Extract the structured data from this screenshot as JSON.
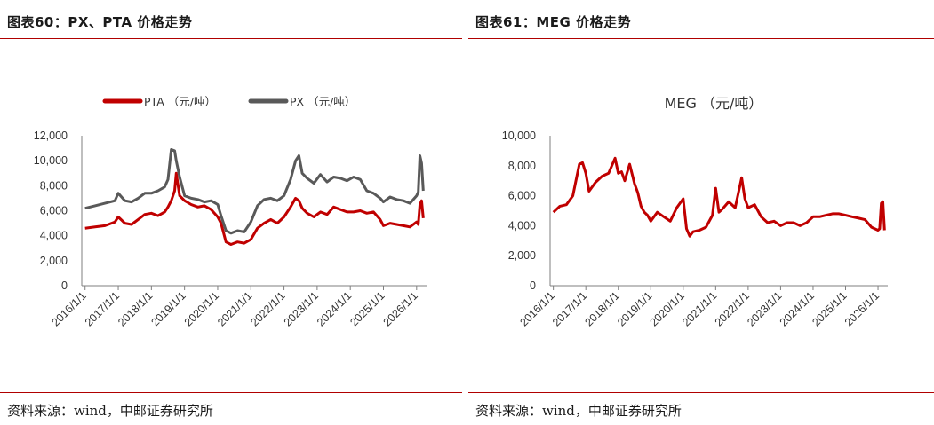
{
  "left_panel": {
    "figure_title": "图表60：PX、PTA 价格走势",
    "source": "资料来源：wind，中邮证券研究所"
  },
  "right_panel": {
    "figure_title": "图表61：MEG 价格走势",
    "source": "资料来源：wind，中邮证券研究所"
  },
  "colors": {
    "red": "#c00000",
    "gray": "#595959",
    "rule": "#b00000"
  },
  "chart_data": [
    {
      "type": "line",
      "title": "",
      "x_ticks": [
        "2016/1/1",
        "2017/1/1",
        "2018/1/1",
        "2019/1/1",
        "2020/1/1",
        "2021/1/1",
        "2022/1/1",
        "2023/1/1",
        "2024/1/1",
        "2025/1/1",
        "2026/1/1"
      ],
      "y_ticks": [
        "0",
        "2,000",
        "4,000",
        "6,000",
        "8,000",
        "10,000",
        "12,000"
      ],
      "ylim": [
        0,
        12000
      ],
      "xlim": [
        2015.9,
        2026.3
      ],
      "legend_position": "top-left",
      "grid": false,
      "series": [
        {
          "name": "PTA （元/吨）",
          "color": "#c00000",
          "x": [
            2016.0,
            2016.3,
            2016.6,
            2016.9,
            2017.0,
            2017.2,
            2017.4,
            2017.6,
            2017.8,
            2018.0,
            2018.2,
            2018.4,
            2018.5,
            2018.6,
            2018.7,
            2018.75,
            2018.85,
            2019.0,
            2019.2,
            2019.4,
            2019.6,
            2019.8,
            2020.0,
            2020.1,
            2020.25,
            2020.4,
            2020.6,
            2020.8,
            2021.0,
            2021.2,
            2021.4,
            2021.6,
            2021.8,
            2022.0,
            2022.2,
            2022.35,
            2022.45,
            2022.55,
            2022.7,
            2022.9,
            2023.1,
            2023.3,
            2023.5,
            2023.7,
            2023.9,
            2024.1,
            2024.3,
            2024.5,
            2024.7,
            2024.9,
            2025.0,
            2025.2,
            2025.4,
            2025.6,
            2025.8,
            2026.0,
            2026.05,
            2026.1,
            2026.15,
            2026.2
          ],
          "y": [
            4600,
            4700,
            4800,
            5100,
            5500,
            5000,
            4900,
            5300,
            5700,
            5800,
            5600,
            5900,
            6300,
            6800,
            7600,
            9000,
            7200,
            6800,
            6500,
            6300,
            6400,
            6100,
            5500,
            5000,
            3500,
            3300,
            3500,
            3400,
            3700,
            4600,
            5000,
            5300,
            5000,
            5500,
            6300,
            7000,
            6800,
            6200,
            5800,
            5500,
            5900,
            5700,
            6300,
            6100,
            5900,
            5900,
            6000,
            5800,
            5900,
            5300,
            4800,
            5000,
            4900,
            4800,
            4700,
            5100,
            4900,
            6500,
            6800,
            5400
          ]
        },
        {
          "name": "PX （元/吨）",
          "color": "#595959",
          "x": [
            2016.0,
            2016.3,
            2016.6,
            2016.9,
            2017.0,
            2017.2,
            2017.4,
            2017.6,
            2017.8,
            2018.0,
            2018.2,
            2018.4,
            2018.5,
            2018.6,
            2018.7,
            2018.75,
            2018.85,
            2019.0,
            2019.2,
            2019.4,
            2019.6,
            2019.8,
            2020.0,
            2020.1,
            2020.25,
            2020.4,
            2020.6,
            2020.8,
            2021.0,
            2021.2,
            2021.4,
            2021.6,
            2021.8,
            2022.0,
            2022.2,
            2022.35,
            2022.45,
            2022.55,
            2022.7,
            2022.9,
            2023.1,
            2023.3,
            2023.5,
            2023.7,
            2023.9,
            2024.1,
            2024.3,
            2024.5,
            2024.7,
            2024.9,
            2025.0,
            2025.2,
            2025.4,
            2025.6,
            2025.8,
            2026.0,
            2026.05,
            2026.1,
            2026.15,
            2026.2
          ],
          "y": [
            6200,
            6400,
            6600,
            6800,
            7400,
            6800,
            6700,
            7000,
            7400,
            7400,
            7600,
            7900,
            8500,
            10900,
            10800,
            10000,
            8700,
            7200,
            7000,
            6900,
            6700,
            6800,
            6500,
            5600,
            4400,
            4200,
            4400,
            4300,
            5100,
            6400,
            6900,
            7000,
            6800,
            7200,
            8500,
            10000,
            10400,
            9000,
            8600,
            8200,
            8900,
            8300,
            8700,
            8600,
            8400,
            8700,
            8500,
            7600,
            7400,
            7000,
            6700,
            7100,
            6900,
            6800,
            6600,
            7200,
            7500,
            10400,
            9800,
            7600
          ]
        }
      ]
    },
    {
      "type": "line",
      "title": "MEG （元/吨）",
      "x_ticks": [
        "2016/1/1",
        "2017/1/1",
        "2018/1/1",
        "2019/1/1",
        "2020/1/1",
        "2021/1/1",
        "2022/1/1",
        "2023/1/1",
        "2024/1/1",
        "2025/1/1",
        "2026/1/1"
      ],
      "y_ticks": [
        "0",
        "2,000",
        "4,000",
        "6,000",
        "8,000",
        "10,000"
      ],
      "ylim": [
        0,
        10000
      ],
      "xlim": [
        2015.9,
        2026.3
      ],
      "grid": false,
      "series": [
        {
          "name": "MEG （元/吨）",
          "color": "#c00000",
          "x": [
            2016.0,
            2016.2,
            2016.4,
            2016.6,
            2016.8,
            2016.9,
            2017.0,
            2017.1,
            2017.3,
            2017.5,
            2017.7,
            2017.9,
            2018.0,
            2018.1,
            2018.2,
            2018.35,
            2018.5,
            2018.6,
            2018.7,
            2018.8,
            2018.9,
            2019.0,
            2019.2,
            2019.4,
            2019.6,
            2019.8,
            2020.0,
            2020.1,
            2020.2,
            2020.3,
            2020.5,
            2020.7,
            2020.9,
            2021.0,
            2021.1,
            2021.2,
            2021.4,
            2021.6,
            2021.8,
            2021.9,
            2022.0,
            2022.2,
            2022.4,
            2022.6,
            2022.8,
            2023.0,
            2023.2,
            2023.4,
            2023.6,
            2023.8,
            2024.0,
            2024.2,
            2024.4,
            2024.6,
            2024.8,
            2025.0,
            2025.2,
            2025.4,
            2025.6,
            2025.8,
            2026.0,
            2026.05,
            2026.1,
            2026.15,
            2026.2
          ],
          "y": [
            4900,
            5300,
            5400,
            6000,
            8100,
            8200,
            7500,
            6300,
            6900,
            7300,
            7500,
            8500,
            7500,
            7600,
            7000,
            8100,
            6800,
            6200,
            5300,
            4900,
            4700,
            4300,
            4900,
            4600,
            4300,
            5200,
            5800,
            3800,
            3300,
            3600,
            3700,
            3900,
            4700,
            6500,
            4900,
            5100,
            5600,
            5200,
            7200,
            5800,
            5200,
            5400,
            4600,
            4200,
            4300,
            4000,
            4200,
            4200,
            4000,
            4200,
            4600,
            4600,
            4700,
            4800,
            4800,
            4700,
            4600,
            4500,
            4400,
            3900,
            3700,
            3800,
            5500,
            5600,
            3700
          ]
        }
      ]
    }
  ]
}
